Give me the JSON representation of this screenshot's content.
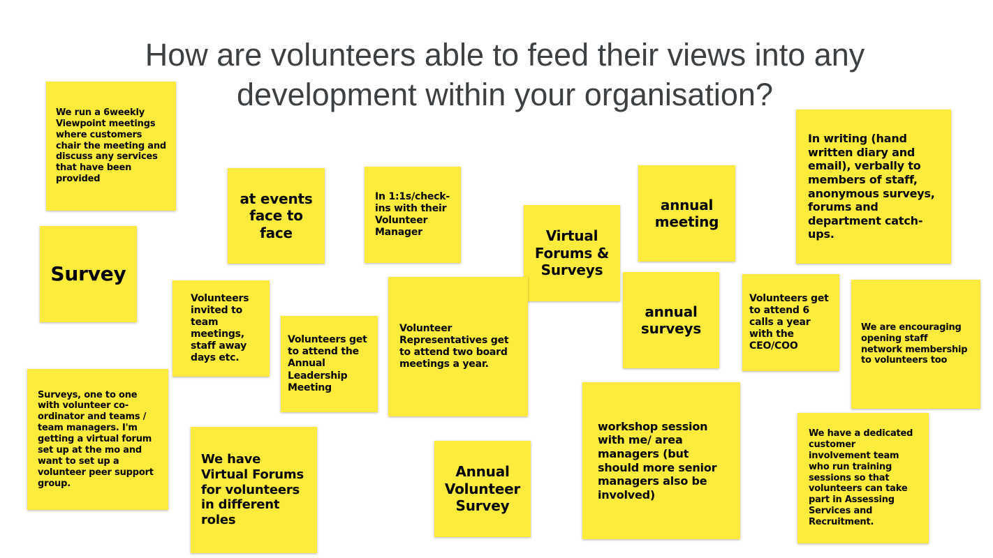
{
  "title": "How are volunteers able to feed their views into any development within your organisation?",
  "notes": [
    {
      "text": "We run a 6weekly Viewpoint meetings where customers chair the meeting and discuss any services that have been provided"
    },
    {
      "text": "Survey"
    },
    {
      "text": "at events face to face"
    },
    {
      "text": "In 1:1s/check-ins with their Volunteer Manager"
    },
    {
      "text": "Virtual Forums & Surveys"
    },
    {
      "text": "annual meeting"
    },
    {
      "text": "In writing (hand written diary and email), verbally to members of staff, anonymous surveys, forums and department catch-ups."
    },
    {
      "text": "Volunteers invited to team meetings, staff away days etc."
    },
    {
      "text": "Volunteers get to attend the Annual Leadership Meeting"
    },
    {
      "text": "Volunteer Representatives get to attend two board meetings a year."
    },
    {
      "text": "annual surveys"
    },
    {
      "text": "Volunteers get to attend 6 calls a year with the CEO/COO"
    },
    {
      "text": "We are encouraging opening staff network membership to volunteers too"
    },
    {
      "text": "Surveys, one to one with volunteer co-ordinator and teams / team managers. I'm getting a virtual forum set up at the mo and want to set up a volunteer peer support group."
    },
    {
      "text": "We have Virtual Forums for volunteers in different roles"
    },
    {
      "text": "Annual Volunteer Survey"
    },
    {
      "text": "workshop session with me/ area managers (but should more senior managers also be involved)"
    },
    {
      "text": "We have a dedicated customer involvement team who run training sessions so that volunteers can take part in Assessing Services and Recruitment."
    }
  ]
}
